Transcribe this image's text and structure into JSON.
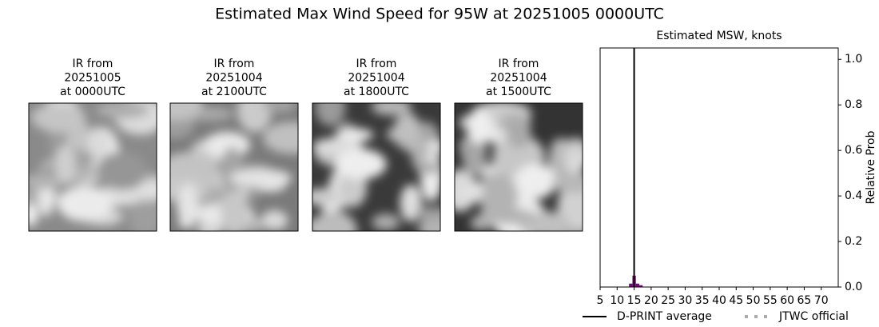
{
  "title": "Estimated Max Wind Speed for 95W at 20251005 0000UTC",
  "panels": [
    {
      "lines": [
        "IR from",
        "20251005",
        "at 0000UTC"
      ]
    },
    {
      "lines": [
        "IR from",
        "20251004",
        "at 2100UTC"
      ]
    },
    {
      "lines": [
        "IR from",
        "20251004",
        "at 1800UTC"
      ]
    },
    {
      "lines": [
        "IR from",
        "20251004",
        "at 1500UTC"
      ]
    }
  ],
  "chart_data": {
    "type": "histogram",
    "title": "Estimated MSW, knots",
    "y_label": "Relative Prob",
    "bins": [
      13.5,
      14.5,
      15.5,
      16.5,
      17.5
    ],
    "values": [
      0.015,
      0.05,
      0.015,
      0.008
    ],
    "color": "#800080",
    "dprint_average": 15,
    "legend": [
      {
        "name": "D-PRINT average",
        "color": "#000000",
        "style": "solid"
      },
      {
        "name": "JTWC official",
        "color": "#aaaaaa",
        "style": "dotted"
      }
    ],
    "xlim": [
      5,
      75
    ],
    "xticks": [
      5,
      10,
      15,
      20,
      25,
      30,
      35,
      40,
      45,
      50,
      55,
      60,
      65,
      70
    ],
    "ylim": [
      0,
      1.05
    ],
    "yticks": [
      {
        "value": 0,
        "label": "0.0"
      },
      0.2,
      0.4,
      0.6,
      0.8,
      {
        "value": 1,
        "label": "1.0"
      }
    ]
  }
}
